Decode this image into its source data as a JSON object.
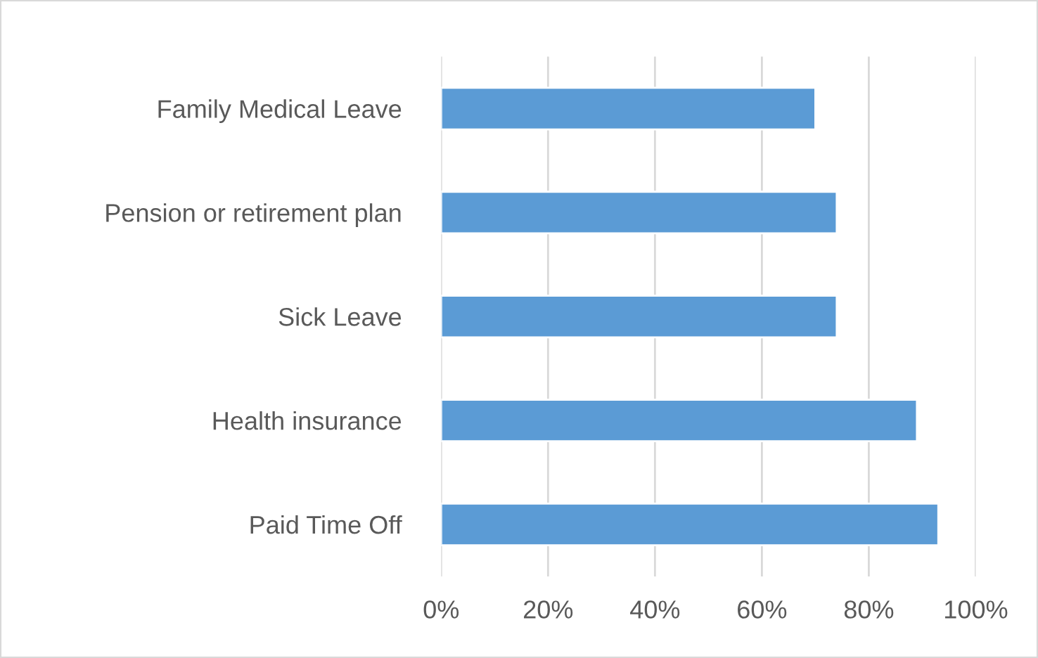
{
  "chart_data": {
    "type": "bar",
    "orientation": "horizontal",
    "categories": [
      "Family Medical Leave",
      "Pension or retirement plan",
      "Sick Leave",
      "Health insurance",
      "Paid Time Off"
    ],
    "values": [
      70,
      74,
      74,
      89,
      93
    ],
    "color": "#5b9bd5",
    "xlim": [
      0,
      100
    ],
    "xticks": [
      {
        "value": 0,
        "label": "0%"
      },
      {
        "value": 20,
        "label": "20%"
      },
      {
        "value": 40,
        "label": "40%"
      },
      {
        "value": 60,
        "label": "60%"
      },
      {
        "value": 80,
        "label": "80%"
      },
      {
        "value": 100,
        "label": "100%"
      }
    ],
    "grid": "x",
    "legend": false
  }
}
